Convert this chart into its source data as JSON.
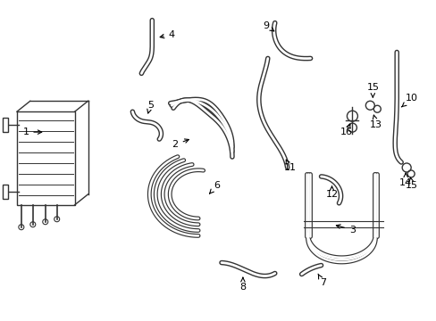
{
  "background_color": "#ffffff",
  "line_color": "#333333",
  "fig_width": 4.89,
  "fig_height": 3.6,
  "dpi": 100
}
